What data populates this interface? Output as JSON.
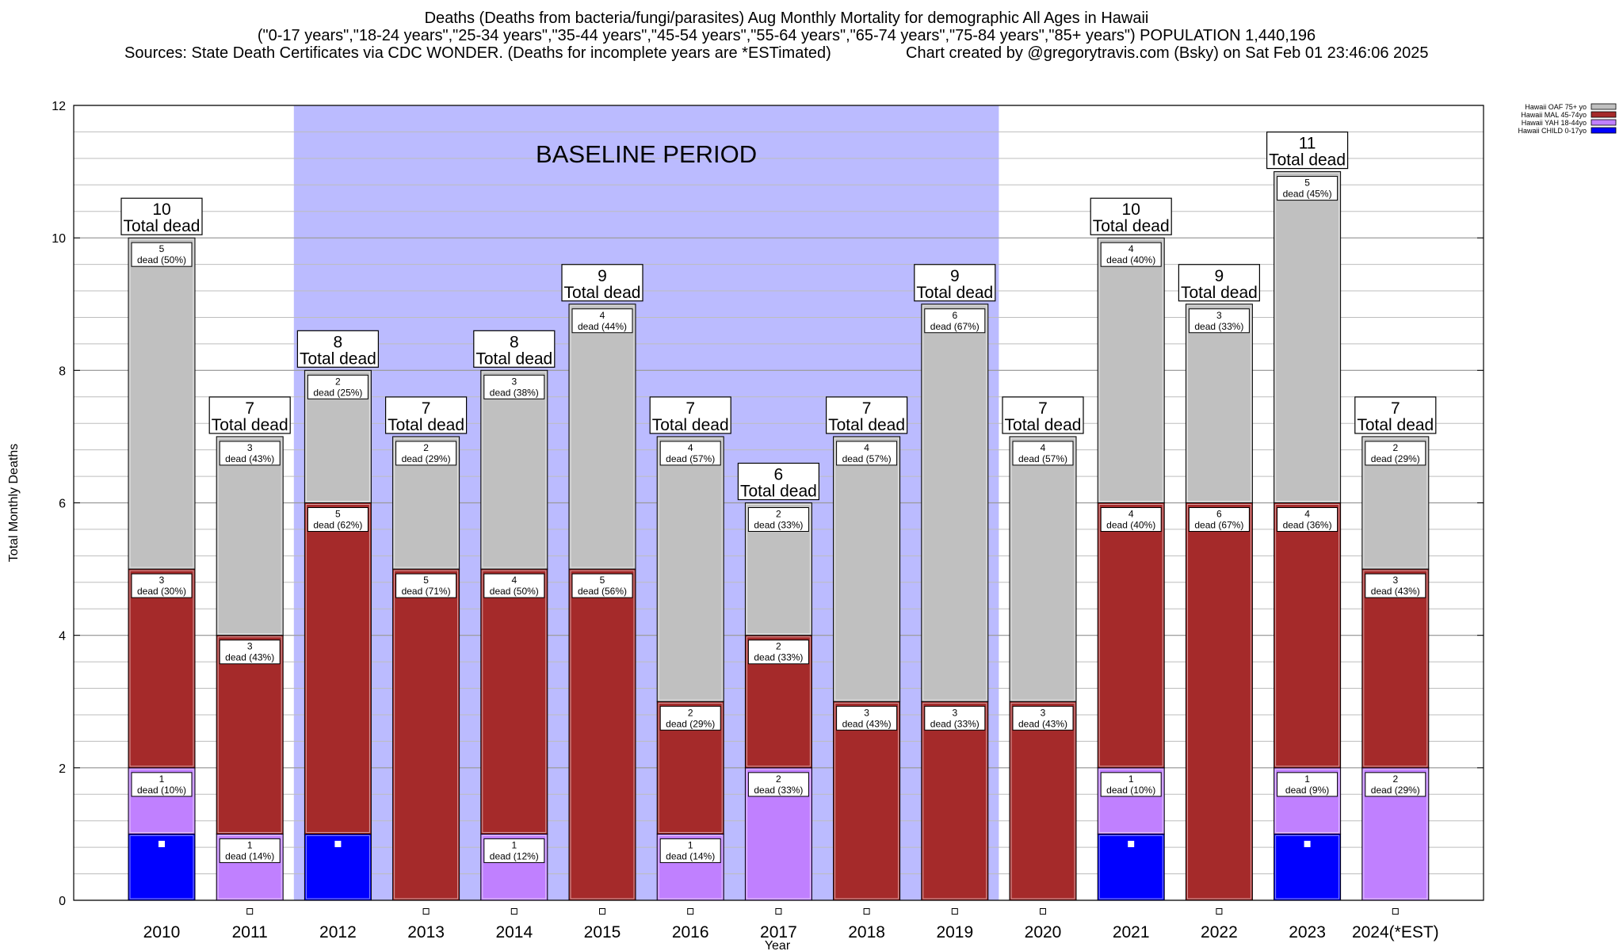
{
  "header": {
    "title_line1": "Deaths (Deaths from bacteria/fungi/parasites) Aug Monthly Mortality for demographic All Ages in Hawaii",
    "title_line2": "(\"0-17 years\",\"18-24 years\",\"25-34 years\",\"35-44 years\",\"45-54 years\",\"55-64 years\",\"65-74 years\",\"75-84 years\",\"85+ years\") POPULATION 1,440,196",
    "sources": "Sources: State Death Certificates via CDC WONDER. (Deaths for incomplete years are *ESTimated)",
    "credit": "Chart created by @gregorytravis.com (Bsky) on Sat Feb 01 23:46:06 2025"
  },
  "chart_data": {
    "type": "bar",
    "stacked": true,
    "xlabel": "Year",
    "ylabel": "Total Monthly Deaths",
    "ylim": [
      0,
      12
    ],
    "yticks": [
      0,
      2,
      4,
      6,
      8,
      10,
      12
    ],
    "grid": true,
    "legend_position": "top-right",
    "baseline_label": "BASELINE PERIOD",
    "baseline_range": [
      "2012",
      "2019"
    ],
    "baseline_color": "#bbbbff",
    "total_suffix": "Total dead",
    "categories": [
      "2010",
      "2011",
      "2012",
      "2013",
      "2014",
      "2015",
      "2016",
      "2017",
      "2018",
      "2019",
      "2020",
      "2021",
      "2022",
      "2023",
      "2024(*EST)"
    ],
    "series": [
      {
        "name": "Hawaii CHILD 0-17yo",
        "color": "#0000ff",
        "values": [
          1,
          0,
          1,
          0,
          0,
          0,
          0,
          0,
          0,
          0,
          0,
          1,
          0,
          1,
          0
        ],
        "labels": [
          "",
          "",
          "",
          "",
          "",
          "",
          "",
          "",
          "",
          "",
          "",
          "",
          "",
          "",
          ""
        ]
      },
      {
        "name": "Hawaii YAH 18-44yo",
        "color": "#c080ff",
        "values": [
          1,
          1,
          0,
          0,
          1,
          0,
          1,
          2,
          0,
          0,
          0,
          1,
          0,
          1,
          2
        ],
        "labels": [
          "1|dead (10%)",
          "1|dead (14%)",
          "",
          "",
          "1|dead (12%)",
          "",
          "1|dead (14%)",
          "2|dead (33%)",
          "",
          "",
          "",
          "1|dead (10%)",
          "",
          "1|dead (9%)",
          "2|dead (29%)"
        ]
      },
      {
        "name": "Hawaii MAL 45-74yo",
        "color": "#a52a2a",
        "values": [
          3,
          3,
          5,
          5,
          4,
          5,
          2,
          2,
          3,
          3,
          3,
          4,
          6,
          4,
          3
        ],
        "labels": [
          "3|dead (30%)",
          "3|dead (43%)",
          "5|dead (62%)",
          "5|dead (71%)",
          "4|dead (50%)",
          "5|dead (56%)",
          "2|dead (29%)",
          "2|dead (33%)",
          "3|dead (43%)",
          "3|dead (33%)",
          "3|dead (43%)",
          "4|dead (40%)",
          "6|dead (67%)",
          "4|dead (36%)",
          "3|dead (43%)"
        ]
      },
      {
        "name": "Hawaii OAF 75+ yo",
        "color": "#c0c0c0",
        "values": [
          5,
          3,
          2,
          2,
          3,
          4,
          4,
          2,
          4,
          6,
          4,
          4,
          3,
          5,
          2
        ],
        "labels": [
          "5|dead (50%)",
          "3|dead (43%)",
          "2|dead (25%)",
          "2|dead (29%)",
          "3|dead (38%)",
          "4|dead (44%)",
          "4|dead (57%)",
          "2|dead (33%)",
          "4|dead (57%)",
          "6|dead (67%)",
          "4|dead (57%)",
          "4|dead (40%)",
          "3|dead (33%)",
          "5|dead (45%)",
          "2|dead (29%)"
        ]
      }
    ],
    "totals": [
      10,
      7,
      8,
      7,
      8,
      9,
      7,
      6,
      7,
      9,
      7,
      10,
      9,
      11,
      7
    ],
    "legend_order": [
      "Hawaii OAF 75+ yo",
      "Hawaii MAL 45-74yo",
      "Hawaii YAH 18-44yo",
      "Hawaii CHILD 0-17yo"
    ]
  }
}
